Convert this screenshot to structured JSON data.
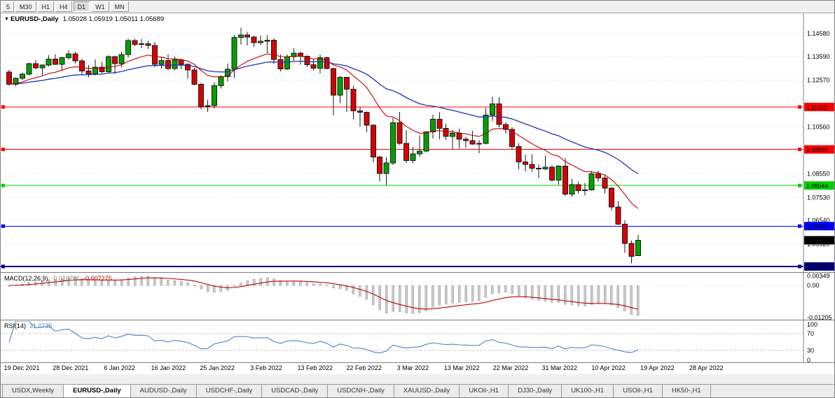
{
  "toolbar": {
    "timeframes": [
      "5",
      "M30",
      "H1",
      "H4",
      "D1",
      "W1",
      "MN"
    ],
    "active": "D1"
  },
  "chart": {
    "title_symbol": "EURUSD-,Daily",
    "title_ohlc": "1.05028 1.05919 1.05011 1.05689"
  },
  "indicators": {
    "macd": {
      "title": "MACD(12,26,9)",
      "main_value": "-0.010281",
      "signal_value": "-0.007275"
    },
    "rsi": {
      "title": "RSI(14)",
      "value": "31.0735"
    }
  },
  "chart_data": {
    "type": "candlestick",
    "symbol": "EURUSD-",
    "timeframe": "Daily",
    "ylim": [
      1.0432,
      1.1545
    ],
    "up_color": "#00a000",
    "down_color": "#d80000",
    "y_ticks": [
      {
        "label": "1.14580",
        "value": 1.1458
      },
      {
        "label": "1.13590",
        "value": 1.1359
      },
      {
        "label": "1.12570",
        "value": 1.1257
      },
      {
        "label": "1.10560",
        "value": 1.1056
      },
      {
        "label": "1.08550",
        "value": 1.0855
      },
      {
        "label": "1.07530",
        "value": 1.0753
      },
      {
        "label": "1.06540",
        "value": 1.0654
      },
      {
        "label": "1.05520",
        "value": 1.0552
      }
    ],
    "x_labels": [
      "19 Dec 2021",
      "28 Dec 2021",
      "6 Jan 2022",
      "16 Jan 2022",
      "25 Jan 2022",
      "3 Feb 2022",
      "13 Feb 2022",
      "22 Feb 2022",
      "3 Mar 2022",
      "13 Mar 2022",
      "22 Mar 2022",
      "31 Mar 2022",
      "10 Apr 2022",
      "19 Apr 2022",
      "28 Apr 2022"
    ],
    "hlines": [
      {
        "label": "1.11422",
        "value": 1.11422,
        "color": "#ff0000",
        "width": 1
      },
      {
        "label": "1.09596",
        "value": 1.09596,
        "color": "#ff0000",
        "width": 1
      },
      {
        "label": "1.08044",
        "value": 1.08044,
        "color": "#00d000",
        "width": 1
      },
      {
        "label": "1.06297",
        "value": 1.06297,
        "color": "#0000ff",
        "width": 1
      },
      {
        "label": "1.04562",
        "value": 1.04562,
        "color": "#000080",
        "width": 2
      }
    ],
    "current_price": {
      "label": "1.05689",
      "value": 1.05689,
      "color": "#000000"
    },
    "ma_fast": {
      "period": 13,
      "color": "#c00000"
    },
    "ma_slow": {
      "period": 34,
      "color": "#2233bb"
    },
    "macd": {
      "params": [
        12,
        26,
        9
      ],
      "hist_color": "#c9c9c9",
      "signal_color": "#c00000",
      "axis": [
        {
          "label": "0.00349",
          "value": 0.00349
        },
        {
          "label": "0.00",
          "value": 0
        },
        {
          "label": "-0.01205",
          "value": -0.01205
        }
      ]
    },
    "rsi": {
      "period": 14,
      "color": "#4f84c4",
      "levels": [
        70,
        30
      ],
      "axis": [
        {
          "label": "100",
          "value": 100
        },
        {
          "label": "70",
          "value": 70
        },
        {
          "label": "30",
          "value": 30
        },
        {
          "label": "0",
          "value": 0
        }
      ]
    },
    "ohlc": [
      [
        1.1292,
        1.1302,
        1.1234,
        1.124
      ],
      [
        1.124,
        1.127,
        1.123,
        1.1265
      ],
      [
        1.1265,
        1.129,
        1.1258,
        1.1284
      ],
      [
        1.1284,
        1.1333,
        1.1278,
        1.1328
      ],
      [
        1.1328,
        1.1343,
        1.1305,
        1.1311
      ],
      [
        1.1311,
        1.1325,
        1.1279,
        1.1323
      ],
      [
        1.1323,
        1.1365,
        1.1317,
        1.1348
      ],
      [
        1.1348,
        1.1369,
        1.1322,
        1.1325
      ],
      [
        1.1325,
        1.1358,
        1.13,
        1.1354
      ],
      [
        1.1354,
        1.1386,
        1.1345,
        1.137
      ],
      [
        1.137,
        1.1379,
        1.133,
        1.134
      ],
      [
        1.134,
        1.135,
        1.1281,
        1.1297
      ],
      [
        1.1297,
        1.1323,
        1.127,
        1.1285
      ],
      [
        1.1285,
        1.1347,
        1.1277,
        1.1314
      ],
      [
        1.1314,
        1.1336,
        1.1286,
        1.1294
      ],
      [
        1.1294,
        1.1364,
        1.1289,
        1.1359
      ],
      [
        1.1359,
        1.1362,
        1.1285,
        1.1328
      ],
      [
        1.1328,
        1.1379,
        1.1313,
        1.1367
      ],
      [
        1.1367,
        1.1435,
        1.1354,
        1.1428
      ],
      [
        1.1428,
        1.1435,
        1.1404,
        1.1411
      ],
      [
        1.1411,
        1.1435,
        1.1394,
        1.1414
      ],
      [
        1.1414,
        1.1426,
        1.1391,
        1.1406
      ],
      [
        1.1406,
        1.1422,
        1.1313,
        1.1325
      ],
      [
        1.1325,
        1.1356,
        1.1308,
        1.1342
      ],
      [
        1.1342,
        1.1369,
        1.1301,
        1.1308
      ],
      [
        1.1308,
        1.136,
        1.13,
        1.1345
      ],
      [
        1.1345,
        1.135,
        1.1304,
        1.1325
      ],
      [
        1.1325,
        1.133,
        1.1264,
        1.1302
      ],
      [
        1.1302,
        1.131,
        1.1235,
        1.124
      ],
      [
        1.124,
        1.1245,
        1.1132,
        1.1144
      ],
      [
        1.1144,
        1.1174,
        1.1121,
        1.1148
      ],
      [
        1.1148,
        1.1248,
        1.1136,
        1.1234
      ],
      [
        1.1234,
        1.1279,
        1.1221,
        1.1273
      ],
      [
        1.1273,
        1.133,
        1.1252,
        1.1305
      ],
      [
        1.1305,
        1.1452,
        1.1267,
        1.1441
      ],
      [
        1.1441,
        1.1483,
        1.1411,
        1.1452
      ],
      [
        1.1452,
        1.1466,
        1.1406,
        1.1442
      ],
      [
        1.1442,
        1.1448,
        1.14,
        1.1418
      ],
      [
        1.1418,
        1.1449,
        1.141,
        1.1425
      ],
      [
        1.1425,
        1.145,
        1.1374,
        1.1429
      ],
      [
        1.1429,
        1.1437,
        1.1329,
        1.1347
      ],
      [
        1.1347,
        1.1368,
        1.1296,
        1.1306
      ],
      [
        1.1306,
        1.1369,
        1.1301,
        1.1358
      ],
      [
        1.1358,
        1.1395,
        1.134,
        1.1374
      ],
      [
        1.1374,
        1.138,
        1.1324,
        1.136
      ],
      [
        1.136,
        1.1364,
        1.1315,
        1.1324
      ],
      [
        1.1324,
        1.135,
        1.1299,
        1.1309
      ],
      [
        1.1309,
        1.1368,
        1.1287,
        1.1354
      ],
      [
        1.1354,
        1.1359,
        1.1305,
        1.1308
      ],
      [
        1.1308,
        1.131,
        1.1106,
        1.1193
      ],
      [
        1.1193,
        1.1274,
        1.1158,
        1.127
      ],
      [
        1.127,
        1.127,
        1.1121,
        1.1219
      ],
      [
        1.1219,
        1.1233,
        1.109,
        1.1125
      ],
      [
        1.1125,
        1.1144,
        1.1058,
        1.1119
      ],
      [
        1.1119,
        1.1122,
        1.1033,
        1.1064
      ],
      [
        1.1064,
        1.1068,
        1.0905,
        1.0927
      ],
      [
        1.0927,
        1.0932,
        1.0822,
        1.0856
      ],
      [
        1.0856,
        1.0927,
        1.0806,
        1.0902
      ],
      [
        1.0902,
        1.1095,
        1.0892,
        1.1074
      ],
      [
        1.1074,
        1.1121,
        1.098,
        1.0986
      ],
      [
        1.0986,
        1.1043,
        1.0901,
        1.0912
      ],
      [
        1.0912,
        1.097,
        1.09,
        1.0941
      ],
      [
        1.0941,
        1.102,
        1.0929,
        1.0953
      ],
      [
        1.0953,
        1.1037,
        1.095,
        1.1035
      ],
      [
        1.1035,
        1.1109,
        1.1006,
        1.109
      ],
      [
        1.109,
        1.112,
        1.1003,
        1.105
      ],
      [
        1.105,
        1.1069,
        1.1,
        1.1015
      ],
      [
        1.1015,
        1.1044,
        1.0961,
        1.1029
      ],
      [
        1.1029,
        1.1048,
        1.0963,
        1.1004
      ],
      [
        1.1004,
        1.1014,
        1.0966,
        1.0998
      ],
      [
        1.0998,
        1.1039,
        1.098,
        1.0983
      ],
      [
        1.0983,
        1.1,
        1.0944,
        1.0986
      ],
      [
        1.0986,
        1.1137,
        1.0981,
        1.1108
      ],
      [
        1.1108,
        1.1185,
        1.1082,
        1.1156
      ],
      [
        1.1156,
        1.1184,
        1.1055,
        1.1067
      ],
      [
        1.1067,
        1.1076,
        1.1027,
        1.1045
      ],
      [
        1.1045,
        1.1055,
        1.096,
        1.0972
      ],
      [
        1.0972,
        1.0985,
        1.0874,
        1.0906
      ],
      [
        1.0906,
        1.0938,
        1.0865,
        1.0895
      ],
      [
        1.0895,
        1.0939,
        1.0863,
        1.0879
      ],
      [
        1.0879,
        1.0893,
        1.0836,
        1.0876
      ],
      [
        1.0876,
        1.0933,
        1.0871,
        1.0883
      ],
      [
        1.0883,
        1.089,
        1.0821,
        1.0827
      ],
      [
        1.0827,
        1.0892,
        1.0808,
        1.0887
      ],
      [
        1.0887,
        1.0923,
        1.0758,
        1.0767
      ],
      [
        1.0767,
        1.0832,
        1.0756,
        1.0808
      ],
      [
        1.0808,
        1.0821,
        1.077,
        1.0782
      ],
      [
        1.0782,
        1.0815,
        1.0761,
        1.0786
      ],
      [
        1.0786,
        1.0867,
        1.0783,
        1.0854
      ],
      [
        1.0854,
        1.0868,
        1.082,
        1.0836
      ],
      [
        1.0836,
        1.0852,
        1.077,
        1.0793
      ],
      [
        1.0793,
        1.0797,
        1.0696,
        1.0712
      ],
      [
        1.0712,
        1.0738,
        1.0635,
        1.0638
      ],
      [
        1.0638,
        1.0655,
        1.0514,
        1.0555
      ],
      [
        1.0555,
        1.0567,
        1.047,
        1.0499
      ],
      [
        1.05028,
        1.05919,
        1.05011,
        1.05689
      ]
    ]
  },
  "tabs": {
    "items": [
      "USDX,Weekly",
      "EURUSD-,Daily",
      "AUDUSD-,Daily",
      "USDCHF-,Daily",
      "USDCAD-,Daily",
      "USDCNH-,Daily",
      "XAUUSD-,Daily",
      "UKOil-,H1",
      "DJ30-,Daily",
      "UK100-,H1",
      "USOil-,H1",
      "HK50-,H1"
    ],
    "active": "EURUSD-,Daily",
    "active_index": 1
  }
}
